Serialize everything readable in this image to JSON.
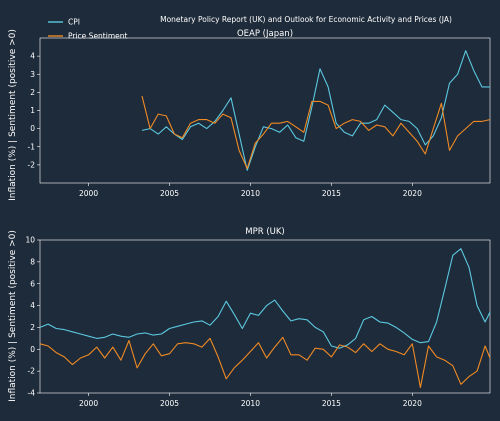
{
  "title": "Monetary Policy Report (UK) and Outlook for Economic Activity and Prices (JA)",
  "ylabel": "Inflation (%) | Sentiment (positive >0)",
  "colors": {
    "background": "#1e2b3a",
    "cpi": "#5bc8e0",
    "sentiment": "#f08a24",
    "axis": "#ffffff"
  },
  "legend": {
    "position": "top-left",
    "entries": [
      "CPI",
      "Price Sentiment"
    ]
  },
  "chart_data": [
    {
      "type": "line",
      "title": "OEAP (Japan)",
      "xlim": [
        1997,
        2024.8
      ],
      "ylim": [
        -3,
        5
      ],
      "xticks": [
        2000,
        2005,
        2010,
        2015,
        2020
      ],
      "yticks": [
        -2,
        -1,
        0,
        1,
        2,
        3,
        4
      ],
      "series": [
        {
          "name": "CPI",
          "x": [
            2003.3,
            2003.8,
            2004.3,
            2004.8,
            2005.3,
            2005.8,
            2006.3,
            2006.8,
            2007.3,
            2007.8,
            2008.3,
            2008.8,
            2009.3,
            2009.8,
            2010.3,
            2010.8,
            2011.3,
            2011.8,
            2012.3,
            2012.8,
            2013.3,
            2013.8,
            2014.3,
            2014.8,
            2015.3,
            2015.8,
            2016.3,
            2016.8,
            2017.3,
            2017.8,
            2018.3,
            2018.8,
            2019.3,
            2019.8,
            2020.3,
            2020.8,
            2021.3,
            2021.8,
            2022.3,
            2022.8,
            2023.3,
            2023.8,
            2024.3,
            2024.8
          ],
          "y": [
            -0.1,
            0.0,
            -0.3,
            0.1,
            -0.3,
            -0.6,
            0.1,
            0.3,
            0.0,
            0.4,
            1.0,
            1.7,
            -0.3,
            -2.3,
            -1.0,
            0.1,
            0.0,
            -0.2,
            0.2,
            -0.5,
            -0.7,
            1.2,
            3.3,
            2.3,
            0.3,
            -0.2,
            -0.4,
            0.3,
            0.3,
            0.5,
            1.3,
            0.9,
            0.5,
            0.4,
            0.0,
            -0.9,
            -0.4,
            0.6,
            2.5,
            3.0,
            4.3,
            3.2,
            2.3,
            2.3
          ]
        },
        {
          "name": "Price Sentiment",
          "x": [
            2003.3,
            2003.8,
            2004.3,
            2004.8,
            2005.3,
            2005.8,
            2006.3,
            2006.8,
            2007.3,
            2007.8,
            2008.3,
            2008.8,
            2009.3,
            2009.8,
            2010.3,
            2010.8,
            2011.3,
            2011.8,
            2012.3,
            2012.8,
            2013.3,
            2013.8,
            2014.3,
            2014.8,
            2015.3,
            2015.8,
            2016.3,
            2016.8,
            2017.3,
            2017.8,
            2018.3,
            2018.8,
            2019.3,
            2019.8,
            2020.3,
            2020.8,
            2021.3,
            2021.8,
            2022.3,
            2022.8,
            2023.3,
            2023.8,
            2024.3,
            2024.8
          ],
          "y": [
            1.8,
            0.0,
            0.8,
            0.7,
            -0.3,
            -0.5,
            0.3,
            0.5,
            0.5,
            0.3,
            0.8,
            0.6,
            -1.2,
            -2.2,
            -0.8,
            -0.3,
            0.3,
            0.3,
            0.4,
            0.1,
            -0.2,
            1.5,
            1.5,
            1.3,
            0.0,
            0.3,
            0.5,
            0.4,
            -0.1,
            0.2,
            0.1,
            -0.4,
            0.3,
            -0.2,
            -0.7,
            -1.4,
            0.0,
            1.4,
            -1.2,
            -0.4,
            0.0,
            0.4,
            0.4,
            0.5
          ]
        }
      ]
    },
    {
      "type": "line",
      "title": "MPR (UK)",
      "xlim": [
        1997,
        2024.8
      ],
      "ylim": [
        -4,
        10
      ],
      "xticks": [
        2000,
        2005,
        2010,
        2015,
        2020
      ],
      "yticks": [
        -4,
        -2,
        0,
        2,
        4,
        6,
        8,
        10
      ],
      "series": [
        {
          "name": "CPI",
          "x": [
            1997.0,
            1997.5,
            1998.0,
            1998.5,
            1999.0,
            1999.5,
            2000.0,
            2000.5,
            2001.0,
            2001.5,
            2002.0,
            2002.5,
            2003.0,
            2003.5,
            2004.0,
            2004.5,
            2005.0,
            2005.5,
            2006.0,
            2006.5,
            2007.0,
            2007.5,
            2008.0,
            2008.5,
            2009.0,
            2009.5,
            2010.0,
            2010.5,
            2011.0,
            2011.5,
            2012.0,
            2012.5,
            2013.0,
            2013.5,
            2014.0,
            2014.5,
            2015.0,
            2015.5,
            2016.0,
            2016.5,
            2017.0,
            2017.5,
            2018.0,
            2018.5,
            2019.0,
            2019.5,
            2020.0,
            2020.5,
            2021.0,
            2021.5,
            2022.0,
            2022.5,
            2023.0,
            2023.5,
            2024.0,
            2024.5,
            2024.8
          ],
          "y": [
            2.0,
            2.3,
            1.9,
            1.8,
            1.6,
            1.4,
            1.2,
            1.0,
            1.1,
            1.4,
            1.2,
            1.1,
            1.4,
            1.5,
            1.3,
            1.4,
            1.9,
            2.1,
            2.3,
            2.5,
            2.6,
            2.2,
            3.0,
            4.4,
            3.2,
            1.9,
            3.3,
            3.1,
            4.0,
            4.5,
            3.5,
            2.6,
            2.8,
            2.7,
            2.0,
            1.6,
            0.3,
            0.1,
            0.4,
            1.0,
            2.7,
            3.0,
            2.5,
            2.4,
            2.0,
            1.5,
            0.9,
            0.6,
            0.7,
            2.5,
            5.5,
            8.6,
            9.2,
            7.5,
            4.0,
            2.5,
            3.4
          ]
        },
        {
          "name": "Price Sentiment",
          "x": [
            1997.0,
            1997.5,
            1998.0,
            1998.5,
            1999.0,
            1999.5,
            2000.0,
            2000.5,
            2001.0,
            2001.5,
            2002.0,
            2002.5,
            2003.0,
            2003.5,
            2004.0,
            2004.5,
            2005.0,
            2005.5,
            2006.0,
            2006.5,
            2007.0,
            2007.5,
            2008.0,
            2008.5,
            2009.0,
            2009.5,
            2010.0,
            2010.5,
            2011.0,
            2011.5,
            2012.0,
            2012.5,
            2013.0,
            2013.5,
            2014.0,
            2014.5,
            2015.0,
            2015.5,
            2016.0,
            2016.5,
            2017.0,
            2017.5,
            2018.0,
            2018.5,
            2019.0,
            2019.5,
            2020.0,
            2020.5,
            2021.0,
            2021.5,
            2022.0,
            2022.5,
            2023.0,
            2023.5,
            2024.0,
            2024.5,
            2024.8
          ],
          "y": [
            0.5,
            0.3,
            -0.3,
            -0.7,
            -1.4,
            -0.8,
            -0.5,
            0.2,
            -0.8,
            0.2,
            -1.0,
            0.8,
            -1.7,
            -0.4,
            0.5,
            -0.6,
            -0.4,
            0.5,
            0.6,
            0.5,
            0.2,
            1.0,
            -0.7,
            -2.7,
            -1.7,
            -1.0,
            -0.2,
            0.6,
            -0.8,
            0.2,
            1.1,
            -0.5,
            -0.5,
            -1.0,
            0.1,
            0.0,
            -0.7,
            0.4,
            0.2,
            -0.3,
            0.5,
            -0.2,
            0.5,
            0.0,
            -0.2,
            -0.5,
            0.5,
            -3.5,
            0.3,
            -0.7,
            -1.0,
            -1.5,
            -3.2,
            -2.5,
            -2.0,
            0.3,
            -0.8
          ]
        }
      ]
    }
  ]
}
